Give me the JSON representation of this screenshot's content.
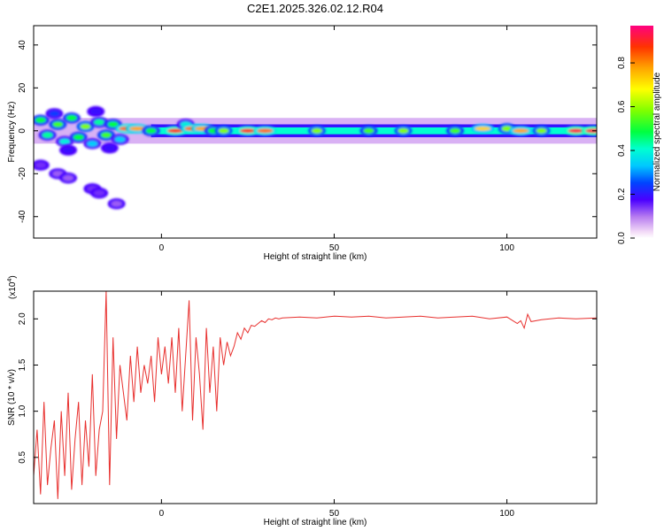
{
  "title": "C2E1.2025.326.02.12.R04",
  "chart_data": [
    {
      "type": "heatmap",
      "xlabel": "Height of straight line (km)",
      "ylabel": "Frequency (Hz)",
      "xlim": [
        -37,
        126
      ],
      "ylim": [
        -50,
        49
      ],
      "xticks": [
        0,
        50,
        100
      ],
      "yticks": [
        40,
        20,
        0,
        -20,
        -40
      ],
      "colorbar": {
        "label": "Normalized spectral amplitude",
        "range": [
          0,
          0.97
        ],
        "ticks": [
          0.0,
          0.2,
          0.4,
          0.6,
          0.8
        ]
      },
      "blobs": [
        {
          "x": -35,
          "y": 5,
          "amp": 0.5
        },
        {
          "x": -33,
          "y": -2,
          "amp": 0.45
        },
        {
          "x": -30,
          "y": 3,
          "amp": 0.55
        },
        {
          "x": -28,
          "y": -5,
          "amp": 0.4
        },
        {
          "x": -26,
          "y": 6,
          "amp": 0.5
        },
        {
          "x": -24,
          "y": -3,
          "amp": 0.5
        },
        {
          "x": -22,
          "y": 2,
          "amp": 0.6
        },
        {
          "x": -20,
          "y": -6,
          "amp": 0.35
        },
        {
          "x": -18,
          "y": 4,
          "amp": 0.45
        },
        {
          "x": -16,
          "y": -2,
          "amp": 0.55
        },
        {
          "x": -14,
          "y": 3,
          "amp": 0.5
        },
        {
          "x": -12,
          "y": -4,
          "amp": 0.35
        },
        {
          "x": -31,
          "y": 8,
          "amp": 0.25
        },
        {
          "x": -27,
          "y": -9,
          "amp": 0.2
        },
        {
          "x": -19,
          "y": 9,
          "amp": 0.2
        },
        {
          "x": -15,
          "y": -8,
          "amp": 0.2
        },
        {
          "x": -35,
          "y": -16,
          "amp": 0.15
        },
        {
          "x": -30,
          "y": -20,
          "amp": 0.12
        },
        {
          "x": -27,
          "y": -22,
          "amp": 0.12
        },
        {
          "x": -20,
          "y": -27,
          "amp": 0.15
        },
        {
          "x": -18,
          "y": -29,
          "amp": 0.15
        },
        {
          "x": -13,
          "y": -34,
          "amp": 0.12
        },
        {
          "x": -10,
          "y": 1,
          "amp": 0.85
        },
        {
          "x": -7,
          "y": 1,
          "amp": 0.8
        },
        {
          "x": -3,
          "y": 0,
          "amp": 0.5
        },
        {
          "x": 4,
          "y": 0,
          "amp": 0.9
        },
        {
          "x": 7,
          "y": 3,
          "amp": 0.4
        },
        {
          "x": 9,
          "y": 1,
          "amp": 0.85
        },
        {
          "x": 12,
          "y": 1,
          "amp": 0.8
        },
        {
          "x": 15,
          "y": 0,
          "amp": 0.5
        },
        {
          "x": 18,
          "y": 0,
          "amp": 0.6
        },
        {
          "x": 25,
          "y": 0,
          "amp": 0.9
        },
        {
          "x": 30,
          "y": 0,
          "amp": 0.85
        },
        {
          "x": 45,
          "y": 0,
          "amp": 0.6
        },
        {
          "x": 60,
          "y": 0,
          "amp": 0.55
        },
        {
          "x": 70,
          "y": 0,
          "amp": 0.6
        },
        {
          "x": 85,
          "y": 0,
          "amp": 0.55
        },
        {
          "x": 93,
          "y": 1,
          "amp": 0.75
        },
        {
          "x": 100,
          "y": 1,
          "amp": 0.6
        },
        {
          "x": 104,
          "y": 0,
          "amp": 0.8
        },
        {
          "x": 110,
          "y": 0,
          "amp": 0.6
        },
        {
          "x": 120,
          "y": 0,
          "amp": 0.95
        },
        {
          "x": 125,
          "y": 0,
          "amp": 0.95
        }
      ]
    },
    {
      "type": "line",
      "xlabel": "Height of straight line (km)",
      "ylabel": "SNR (10 * v/v)",
      "y_multiplier": "(x10",
      "y_exponent": "4",
      "xlim": [
        -37,
        126
      ],
      "ylim": [
        0,
        23000
      ],
      "xticks": [
        0,
        50,
        100
      ],
      "yticks": [
        5000,
        10000,
        15000,
        20000
      ],
      "ytick_labels": [
        "0.5",
        "1.0",
        "1.5",
        "2.0"
      ],
      "series": [
        {
          "color": "#e8302e",
          "x": [
            -37,
            -36,
            -35,
            -34,
            -33,
            -32,
            -31,
            -30,
            -29,
            -28,
            -27,
            -26,
            -25,
            -24,
            -23,
            -22,
            -21,
            -20,
            -19,
            -18,
            -17,
            -16,
            -15,
            -14,
            -13,
            -12,
            -11,
            -10,
            -9,
            -8,
            -7,
            -6,
            -5,
            -4,
            -3,
            -2,
            -1,
            0,
            1,
            2,
            3,
            4,
            5,
            6,
            7,
            8,
            9,
            10,
            11,
            12,
            13,
            14,
            15,
            16,
            17,
            18,
            19,
            20,
            21,
            22,
            23,
            24,
            25,
            26,
            27,
            28,
            29,
            30,
            31,
            32,
            33,
            34,
            35,
            40,
            45,
            50,
            55,
            60,
            65,
            70,
            75,
            80,
            85,
            90,
            95,
            100,
            103,
            104,
            105,
            106,
            107,
            110,
            115,
            120,
            126
          ],
          "y": [
            3000,
            8000,
            1000,
            11000,
            2000,
            6000,
            9000,
            500,
            10000,
            3000,
            12000,
            1500,
            7000,
            11000,
            2000,
            9000,
            4000,
            14000,
            3000,
            8000,
            10000,
            23000,
            2000,
            18000,
            7000,
            15000,
            12000,
            9000,
            16000,
            11000,
            17000,
            12000,
            15000,
            13000,
            16000,
            11000,
            18000,
            14000,
            17000,
            13000,
            18000,
            12000,
            19000,
            10000,
            16000,
            22000,
            9000,
            18000,
            14000,
            8000,
            19000,
            12000,
            17000,
            10000,
            18000,
            15000,
            17500,
            16000,
            17000,
            18500,
            17800,
            19000,
            18500,
            19300,
            19200,
            19500,
            19800,
            19600,
            20000,
            19900,
            20100,
            20000,
            20100,
            20200,
            20100,
            20300,
            20200,
            20300,
            20100,
            20200,
            20300,
            20100,
            20200,
            20300,
            20000,
            20200,
            19500,
            19800,
            19000,
            20500,
            19700,
            19900,
            20100,
            20000,
            20100
          ]
        }
      ]
    }
  ]
}
